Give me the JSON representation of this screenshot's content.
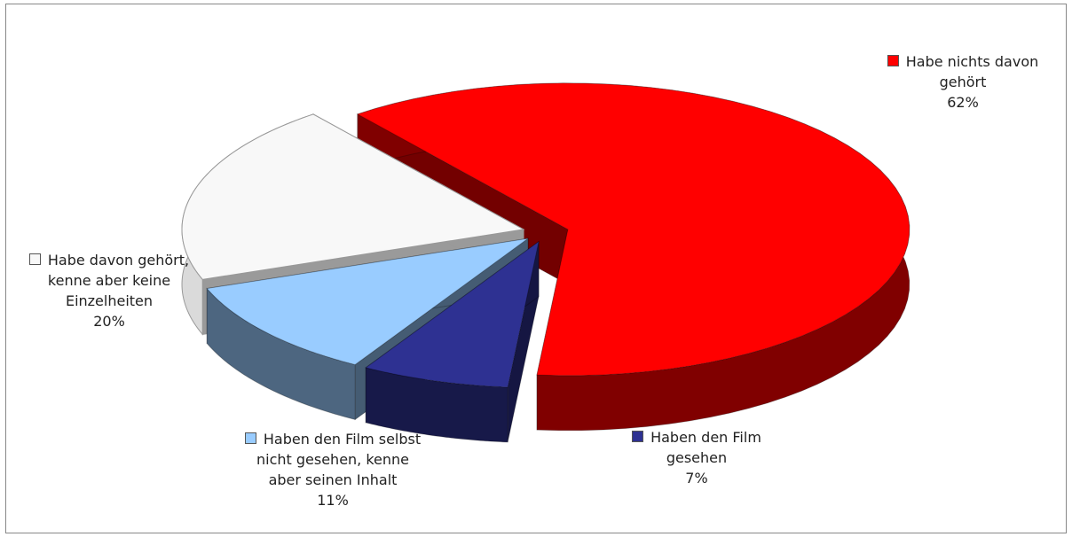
{
  "chart_data": {
    "type": "pie",
    "categories": [
      "Habe nichts davon gehört",
      "Haben den Film gesehen",
      "Haben den Film selbst nicht gesehen, kenne aber seinen Inhalt",
      "Habe davon gehört, kenne aber keine Einzelheiten"
    ],
    "values": [
      62,
      7,
      11,
      20
    ],
    "value_labels": [
      "62%",
      "7%",
      "11%",
      "20%"
    ],
    "colors": [
      "#ff0000",
      "#2e3192",
      "#99ccff",
      "#f8f8f8"
    ]
  }
}
